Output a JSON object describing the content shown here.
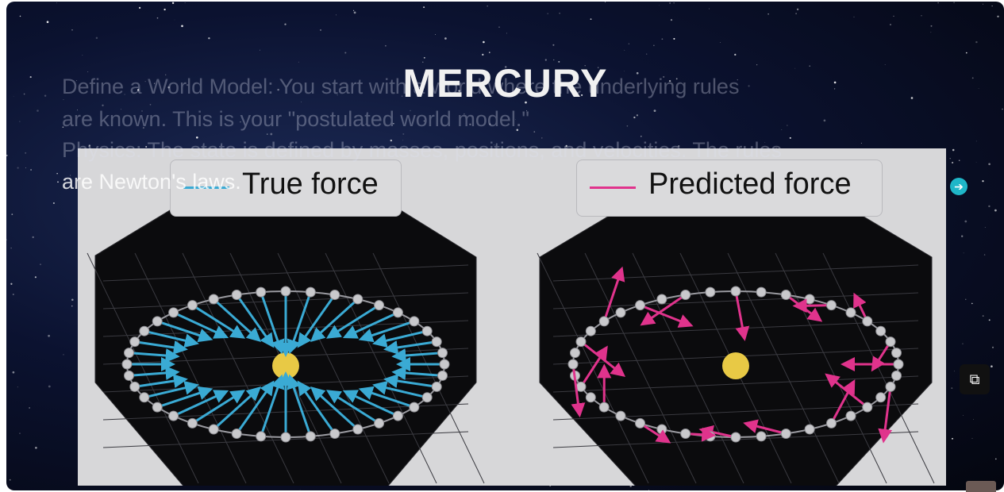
{
  "slide": {
    "title": "MERCURY",
    "ghost_lines": [
      "Define a World Model: You start with a world where the underlying rules",
      "are known. This is your \"postulated world model.\"",
      "Physics: The state is defined by masses, positions, and velocities. The rules",
      "are Newton's laws."
    ]
  },
  "figure": {
    "panels": [
      {
        "legend": "True force",
        "color": "#3aaad4"
      },
      {
        "legend": "Predicted force",
        "color": "#e0338c"
      }
    ],
    "sun_color": "#e8c945"
  },
  "controls": {
    "next_icon": "arrow-right-circle-icon",
    "pip_icon": "picture-in-picture-icon"
  }
}
